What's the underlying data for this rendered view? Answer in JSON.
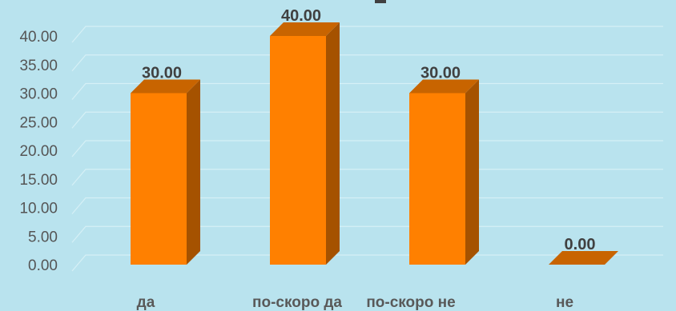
{
  "chart_data": {
    "type": "bar",
    "title": "",
    "xlabel": "",
    "ylabel": "",
    "categories": [
      "да",
      "по-скоро да",
      "по-скоро не",
      "не"
    ],
    "values": [
      30.0,
      40.0,
      30.0,
      0.0
    ],
    "data_labels": [
      "30.00",
      "40.00",
      "30.00",
      "0.00"
    ],
    "y_ticks": [
      "0.00",
      "5.00",
      "10.00",
      "15.00",
      "20.00",
      "25.00",
      "30.00",
      "35.00",
      "40.00"
    ],
    "ylim": [
      0,
      40
    ],
    "grid": true,
    "legend": "none",
    "style": "3d-column",
    "colors": {
      "bar_front": "#ff8000",
      "bar_side": "#a55200",
      "bar_top": "#c86400",
      "background": "#b9e3ee",
      "grid": "#d6f0f6"
    }
  }
}
